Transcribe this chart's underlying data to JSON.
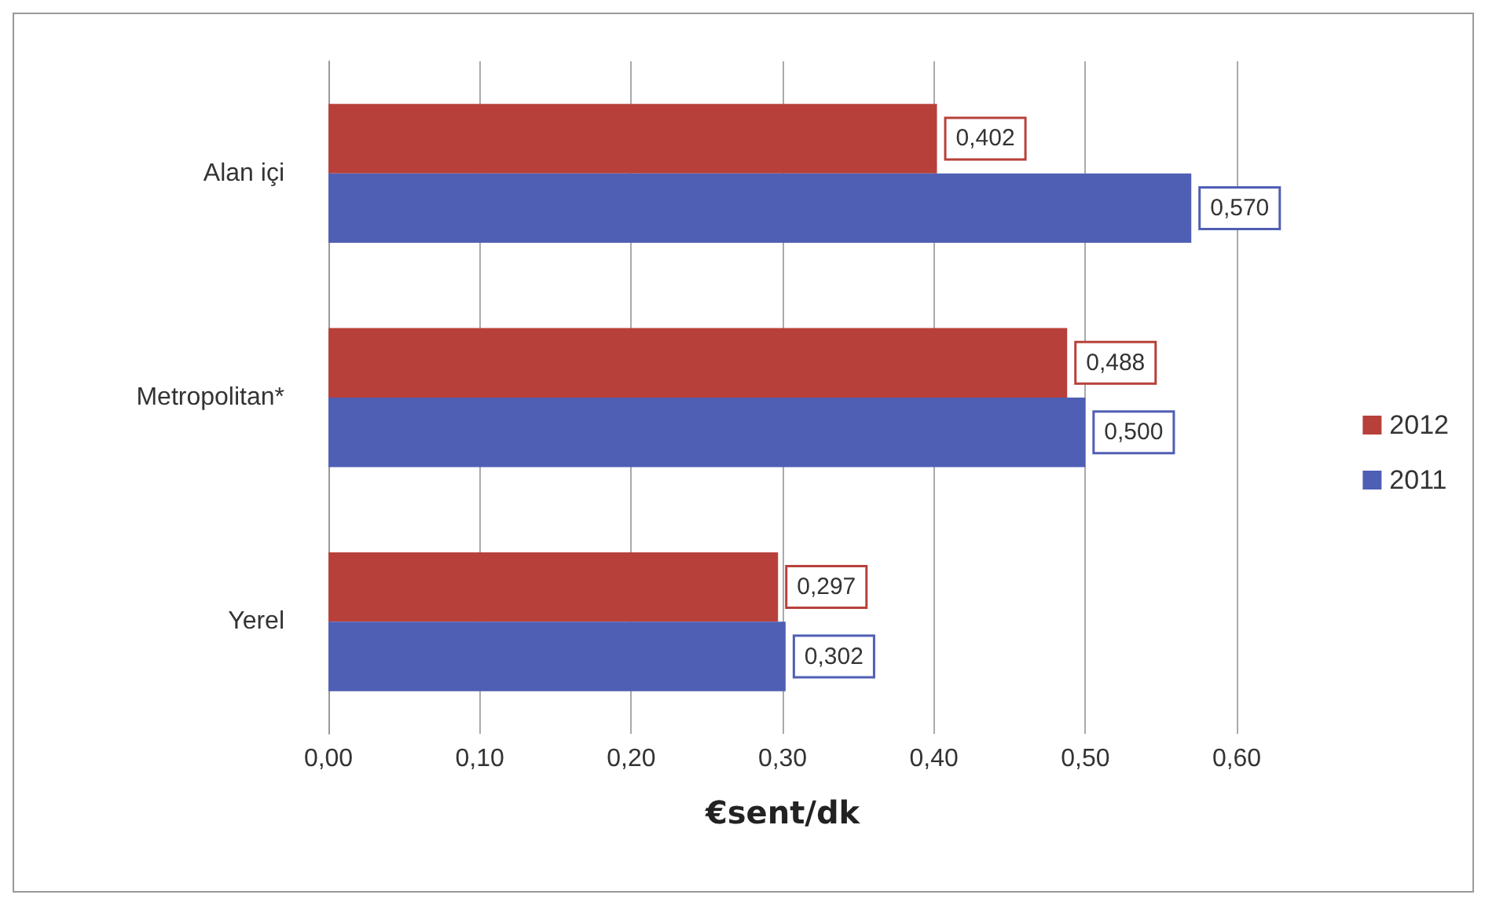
{
  "chart_data": {
    "type": "bar",
    "orientation": "horizontal",
    "xlabel": "€sent/dk",
    "categories": [
      "Alan içi",
      "Metropolitan*",
      "Yerel"
    ],
    "series": [
      {
        "name": "2012",
        "color": "#b8403a",
        "values": [
          0.402,
          0.488,
          0.297
        ],
        "value_labels": [
          "0,402",
          "0,488",
          "0,297"
        ]
      },
      {
        "name": "2011",
        "color": "#4f5fb4",
        "values": [
          0.57,
          0.5,
          0.302
        ],
        "value_labels": [
          "0,570",
          "0,500",
          "0,302"
        ]
      }
    ],
    "xlim": [
      0,
      0.6
    ],
    "xticks": [
      {
        "value": 0,
        "label": "0,00"
      },
      {
        "value": 0.1,
        "label": "0,10"
      },
      {
        "value": 0.2,
        "label": "0,20"
      },
      {
        "value": 0.3,
        "label": "0,30"
      },
      {
        "value": 0.4,
        "label": "0,40"
      },
      {
        "value": 0.5,
        "label": "0,50"
      },
      {
        "value": 0.6,
        "label": "0,60"
      }
    ],
    "grid": "x",
    "legend": "right"
  }
}
